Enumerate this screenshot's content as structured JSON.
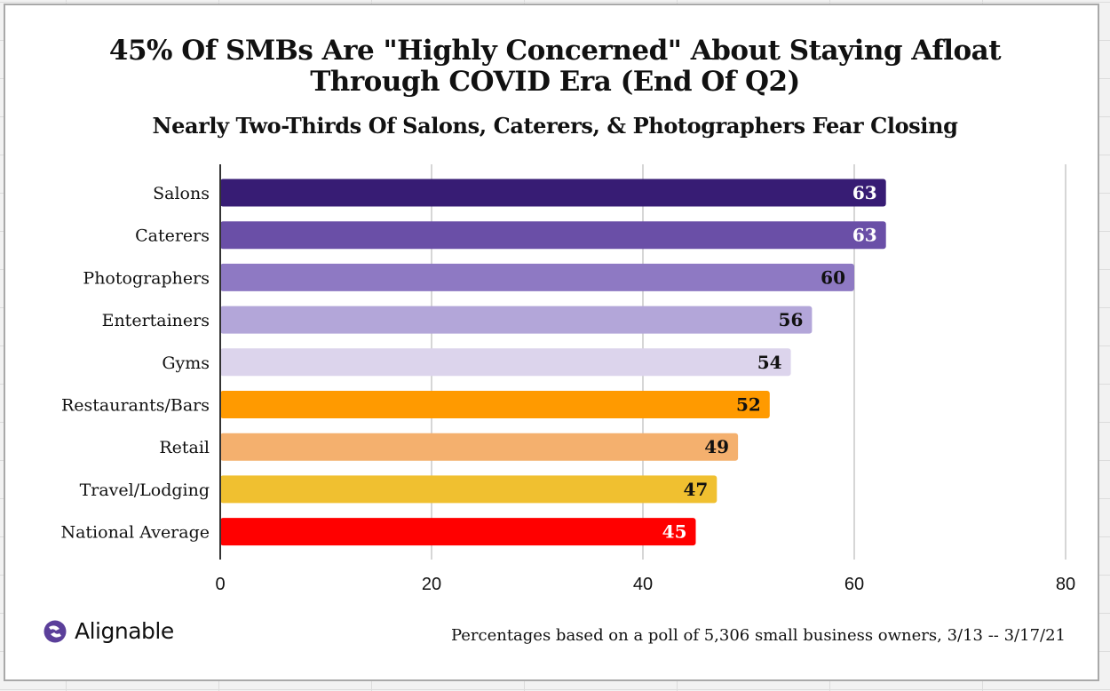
{
  "chart_data": {
    "type": "bar",
    "orientation": "horizontal",
    "title": "45% Of SMBs Are \"Highly Concerned\" About Staying Afloat Through COVID Era (End Of Q2)",
    "title_lines": [
      "45% Of SMBs Are \"Highly Concerned\" About Staying Afloat",
      "Through COVID Era (End Of Q2)"
    ],
    "subtitle": "Nearly Two-Thirds Of Salons, Caterers, & Photographers Fear Closing",
    "categories": [
      "Salons",
      "Caterers",
      "Photographers",
      "Entertainers",
      "Gyms",
      "Restaurants/Bars",
      "Retail",
      "Travel/Lodging",
      "National Average"
    ],
    "values": [
      63,
      63,
      60,
      56,
      54,
      52,
      49,
      47,
      45
    ],
    "bar_colors": [
      "#371c74",
      "#6a4fa7",
      "#8e79c3",
      "#b3a6d9",
      "#dcd4ec",
      "#ff9a00",
      "#f4b06e",
      "#f0c030",
      "#ff0000"
    ],
    "label_colors": [
      "#ffffff",
      "#ffffff",
      "#111111",
      "#111111",
      "#111111",
      "#111111",
      "#111111",
      "#111111",
      "#ffffff"
    ],
    "xlim": [
      0,
      80
    ],
    "xticks": [
      0,
      20,
      40,
      60,
      80
    ],
    "xlabel": "",
    "ylabel": "",
    "grid": "vertical",
    "legend": "none"
  },
  "branding": {
    "logo_text": "Alignable",
    "logo_color": "#5b3f9a"
  },
  "footnote": "Percentages based on a poll of 5,306 small business owners, 3/13 -- 3/17/21"
}
